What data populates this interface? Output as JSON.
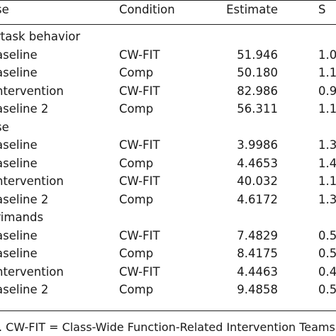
{
  "header": {
    "phase": "se",
    "condition": "Condition",
    "estimate": "Estimate",
    "se": "S"
  },
  "sections": [
    {
      "title": "rtask behavior",
      "rows": [
        {
          "phase": "aseline",
          "condition": "CW-FIT",
          "estimate": "51.946",
          "se": "1.0"
        },
        {
          "phase": "aseline",
          "condition": "Comp",
          "estimate": "50.180",
          "se": "1.1"
        },
        {
          "phase": "ntervention",
          "condition": "CW-FIT",
          "estimate": "82.986",
          "se": "0.9"
        },
        {
          "phase": "aseline 2",
          "condition": "Comp",
          "estimate": "56.311",
          "se": "1.1"
        }
      ]
    },
    {
      "title": "se",
      "rows": [
        {
          "phase": "aseline",
          "condition": "CW-FIT",
          "estimate": "3.9986",
          "se": "1.3"
        },
        {
          "phase": "aseline",
          "condition": "Comp",
          "estimate": "4.4653",
          "se": "1.4"
        },
        {
          "phase": "ntervention",
          "condition": "CW-FIT",
          "estimate": "40.032",
          "se": "1.1"
        },
        {
          "phase": "aseline 2",
          "condition": "Comp",
          "estimate": "4.6172",
          "se": "1.3"
        }
      ]
    },
    {
      "title": "rimands",
      "rows": [
        {
          "phase": "aseline",
          "condition": "CW-FIT",
          "estimate": "7.4829",
          "se": "0.5"
        },
        {
          "phase": "aseline",
          "condition": "Comp",
          "estimate": "8.4175",
          "se": "0.5"
        },
        {
          "phase": "ntervention",
          "condition": "CW-FIT",
          "estimate": "4.4463",
          "se": "0.4"
        },
        {
          "phase": "aseline 2",
          "condition": "Comp",
          "estimate": "9.4858",
          "se": "0.5"
        }
      ]
    }
  ],
  "footnote": ". CW-FIT = Class-Wide Function-Related Intervention Teams."
}
